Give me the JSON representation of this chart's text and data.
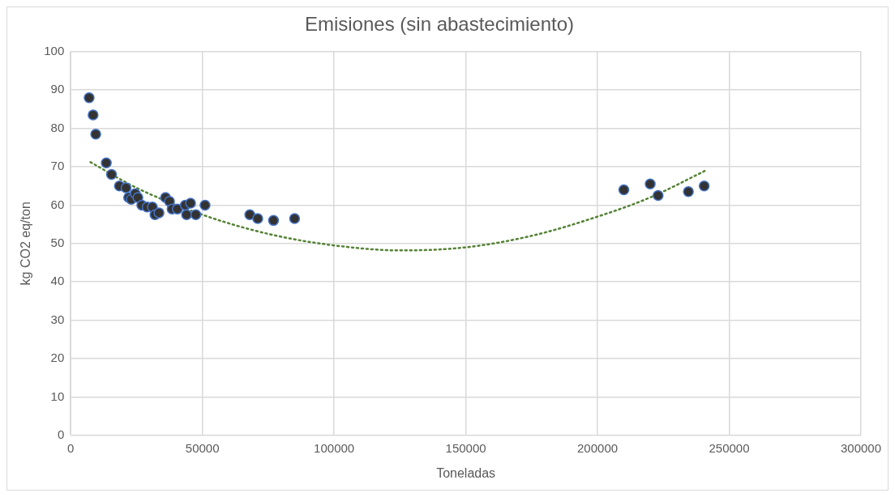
{
  "chart_data": {
    "type": "scatter",
    "title": "Emisiones (sin abastecimiento)",
    "xlabel": "Toneladas",
    "ylabel": "kg CO2 eq/ton",
    "xlim": [
      0,
      300000
    ],
    "xticks": [
      0,
      50000,
      100000,
      150000,
      200000,
      250000,
      300000
    ],
    "ylim": [
      0,
      100
    ],
    "yticks": [
      0,
      10,
      20,
      30,
      40,
      50,
      60,
      70,
      80,
      90,
      100
    ],
    "grid": true,
    "legend": false,
    "marker": "circle",
    "series": [
      {
        "color": "#333333",
        "x": [
          7000,
          8500,
          9500,
          13500,
          15500,
          18500,
          21000,
          22000,
          23000,
          24500,
          25500,
          27000,
          29000,
          31000,
          32000,
          33500,
          36000,
          37500,
          38500,
          40500,
          43500,
          44000,
          45500,
          47500,
          51000,
          68000,
          71000,
          77000,
          85000,
          210000,
          220000,
          223000,
          234500,
          240500
        ],
        "values": [
          88,
          83.5,
          78.5,
          71,
          68,
          65,
          64.5,
          62,
          61.5,
          63,
          62,
          60,
          59.5,
          59.5,
          57.5,
          58,
          62,
          61,
          59,
          59,
          60,
          57.5,
          60.5,
          57.5,
          60,
          57.5,
          56.5,
          56,
          56.5,
          64,
          65.5,
          62.5,
          63.5,
          65
        ]
      },
      {
        "type": "line",
        "color": "#548235",
        "line_style": "dotted",
        "marker": "none",
        "x": [
          7500,
          25000,
          50000,
          75000,
          100000,
          125000,
          150000,
          175000,
          200000,
          220000,
          241000
        ],
        "values": [
          71.2,
          64.5,
          57.5,
          52.5,
          49.5,
          48.2,
          49,
          52,
          57,
          62,
          69
        ]
      }
    ]
  }
}
